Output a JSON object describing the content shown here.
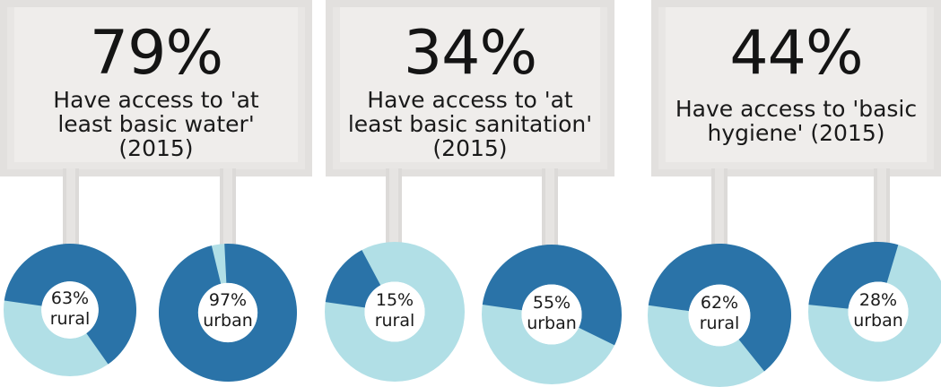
{
  "colors": {
    "dark": "#2a73a8",
    "light": "#b1dfe6",
    "panel": "#efedeb",
    "text": "#141414"
  },
  "stats": [
    {
      "percent": "79%",
      "description": "Have access to 'at least basic water' (2015)",
      "desc_lines": [
        "Have access to 'at",
        "least basic water'",
        "(2015)"
      ],
      "rural": {
        "value": 63,
        "label": "63%",
        "sublabel": "rural"
      },
      "urban": {
        "value": 97,
        "label": "97%",
        "sublabel": "urban"
      }
    },
    {
      "percent": "34%",
      "description": "Have access to 'at least basic sanitation' (2015)",
      "desc_lines": [
        "Have access to 'at",
        "least basic sanitation'",
        "(2015)"
      ],
      "rural": {
        "value": 15,
        "label": "15%",
        "sublabel": "rural"
      },
      "urban": {
        "value": 55,
        "label": "55%",
        "sublabel": "urban"
      }
    },
    {
      "percent": "44%",
      "description": "Have access to 'basic hygiene' (2015)",
      "desc_lines": [
        "Have access to 'basic",
        "hygiene' (2015)"
      ],
      "rural": {
        "value": 62,
        "label": "62%",
        "sublabel": "rural"
      },
      "urban": {
        "value": 28,
        "label": "28%",
        "sublabel": "urban"
      }
    }
  ]
}
